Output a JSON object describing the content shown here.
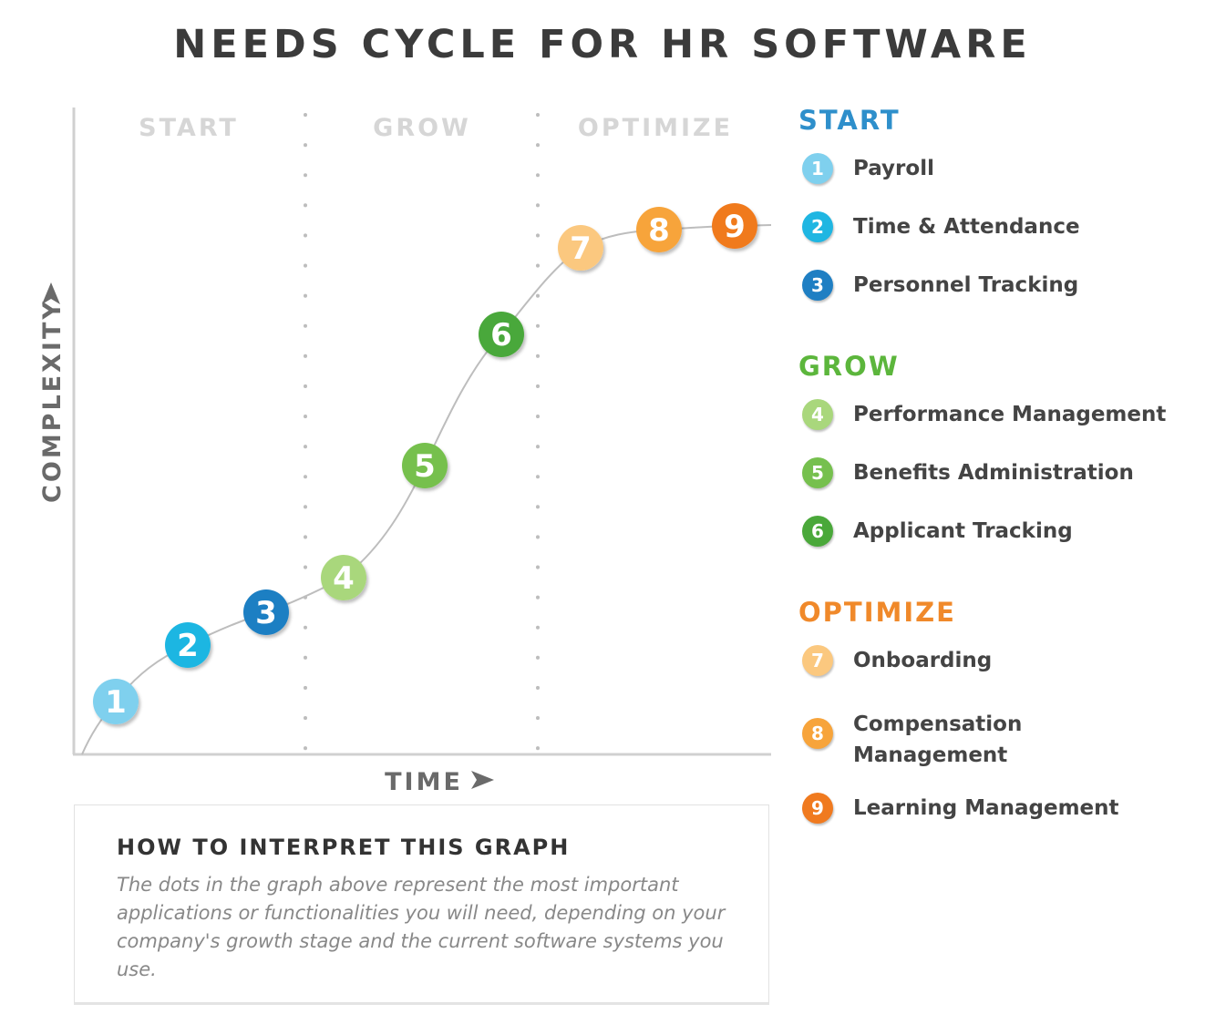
{
  "title": "NEEDS CYCLE FOR HR SOFTWARE",
  "colors": {
    "start": "#2e8fcb",
    "grow": "#5cb63c",
    "optimize": "#f0892a",
    "axis": "#d0d0d0",
    "stage_label": "#d6d6d6",
    "axis_label": "#6a6a6a",
    "curve": "#bdbdbd"
  },
  "chart_data": {
    "type": "line",
    "xlabel": "TIME",
    "ylabel": "COMPLEXITY",
    "stages": [
      "START",
      "GROW",
      "OPTIMIZE"
    ],
    "points": [
      {
        "n": "1",
        "color": "#7fd0ee"
      },
      {
        "n": "2",
        "color": "#1fb6e2"
      },
      {
        "n": "3",
        "color": "#1f7fc3"
      },
      {
        "n": "4",
        "color": "#a9d77c"
      },
      {
        "n": "5",
        "color": "#76c04e"
      },
      {
        "n": "6",
        "color": "#4aa83a"
      },
      {
        "n": "7",
        "color": "#fbc87f"
      },
      {
        "n": "8",
        "color": "#f7a43b"
      },
      {
        "n": "9",
        "color": "#f07a1f"
      }
    ]
  },
  "legend": {
    "groups": [
      {
        "name": "START",
        "color": "#2e8fcb",
        "items": [
          {
            "n": "1",
            "label": "Payroll",
            "color": "#7fd0ee"
          },
          {
            "n": "2",
            "label": "Time & Attendance",
            "color": "#1fb6e2"
          },
          {
            "n": "3",
            "label": "Personnel Tracking",
            "color": "#1f7fc3"
          }
        ]
      },
      {
        "name": "GROW",
        "color": "#5cb63c",
        "items": [
          {
            "n": "4",
            "label": "Performance Management",
            "color": "#a9d77c"
          },
          {
            "n": "5",
            "label": "Benefits Administration",
            "color": "#76c04e"
          },
          {
            "n": "6",
            "label": "Applicant Tracking",
            "color": "#4aa83a"
          }
        ]
      },
      {
        "name": "OPTIMIZE",
        "color": "#f0892a",
        "items": [
          {
            "n": "7",
            "label": "Onboarding",
            "color": "#fbc87f"
          },
          {
            "n": "8",
            "label": "Compensation Management",
            "color": "#f7a43b"
          },
          {
            "n": "9",
            "label": "Learning Management",
            "color": "#f07a1f"
          }
        ]
      }
    ]
  },
  "info": {
    "heading": "HOW TO INTERPRET THIS GRAPH",
    "text": "The dots in the graph above represent the most important applications or functionalities you will need, depending on your company's growth stage and the current software systems you use."
  }
}
